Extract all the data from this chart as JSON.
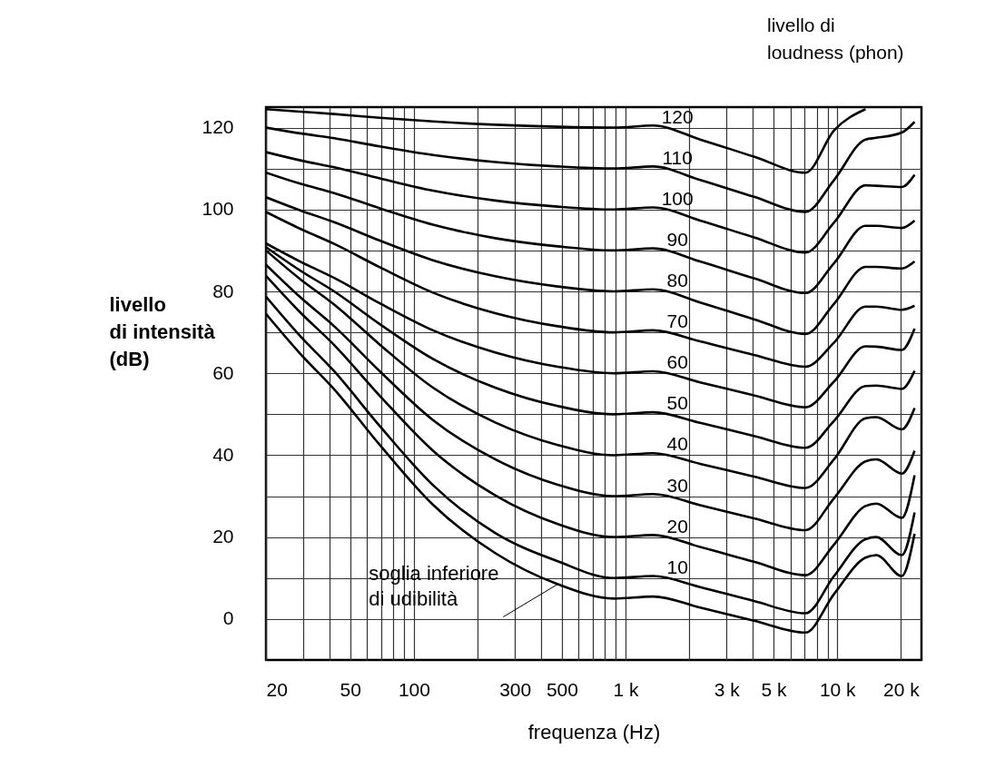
{
  "chart_data": {
    "type": "line",
    "xlabel": "frequenza (Hz)",
    "ylabel": "livello\ndi intensità\n(dB)",
    "legend_title": "livello di\nloudness (phon)",
    "x": [
      20,
      29,
      42,
      69,
      123,
      242,
      478,
      880,
      1350,
      2250,
      4040,
      7080,
      9660,
      13600,
      15300,
      20200,
      23200
    ],
    "series": [
      {
        "name": "120",
        "color": "#000000",
        "values": [
          124.5,
          123.9,
          123.3,
          122.4,
          121.5,
          120.7,
          120.2,
          120,
          120.5,
          117.1,
          112.9,
          109,
          119.3,
          124.5,
          null,
          null,
          null
        ]
      },
      {
        "name": "110",
        "color": "#000000",
        "values": [
          120,
          118.6,
          117.4,
          115.4,
          113.3,
          111.6,
          110.5,
          110,
          110.5,
          107.2,
          103.1,
          99.4,
          107.2,
          117.1,
          117.5,
          118.8,
          121.4
        ]
      },
      {
        "name": "100",
        "color": "#000000",
        "values": [
          114,
          112,
          110.3,
          107.6,
          104.6,
          102.2,
          100.7,
          100,
          100.5,
          97.3,
          93.2,
          89.5,
          96.8,
          105.9,
          105.8,
          105.5,
          108.5
        ]
      },
      {
        "name": "90",
        "color": "#000000",
        "values": [
          109,
          106.3,
          104,
          100.3,
          96.3,
          93,
          91,
          90,
          90.5,
          87.3,
          83.2,
          79.6,
          86.9,
          96,
          96,
          95.5,
          97.3
        ]
      },
      {
        "name": "80",
        "color": "#000000",
        "values": [
          103,
          99.8,
          96.9,
          92.4,
          87.6,
          83.7,
          81.2,
          80,
          80.5,
          77.3,
          73.2,
          69.6,
          77,
          86,
          86,
          85.6,
          87.3
        ]
      },
      {
        "name": "70",
        "color": "#000000",
        "values": [
          99.4,
          95.3,
          91.6,
          85.9,
          79.7,
          74.7,
          71.5,
          70,
          70.5,
          67.8,
          64.5,
          61.6,
          67.5,
          76.3,
          76.3,
          75.5,
          76.5
        ]
      },
      {
        "name": "60",
        "color": "#000000",
        "values": [
          91.7,
          87.3,
          83.3,
          77.1,
          70.5,
          65.1,
          61.6,
          60,
          60.5,
          57.8,
          54.6,
          51.7,
          58,
          66.6,
          66.5,
          65.7,
          70.9
        ]
      },
      {
        "name": "50",
        "color": "#000000",
        "values": [
          90.8,
          85.1,
          80,
          72,
          63.5,
          56.5,
          52,
          50,
          50.5,
          47.9,
          44.7,
          41.8,
          48.4,
          56.9,
          57,
          56.2,
          60.6
        ]
      },
      {
        "name": "40",
        "color": "#000000",
        "values": [
          90,
          83,
          76.8,
          67,
          56.5,
          48,
          42.5,
          40,
          40.5,
          37.9,
          34.8,
          32,
          39,
          49,
          49.3,
          46.3,
          51.5
        ]
      },
      {
        "name": "30",
        "color": "#000000",
        "values": [
          86.5,
          78.6,
          71.5,
          60.5,
          48.6,
          39,
          32.8,
          30,
          30.5,
          27.8,
          24.6,
          21.7,
          29.5,
          38.5,
          39,
          35.5,
          41.1
        ]
      },
      {
        "name": "20",
        "color": "#000000",
        "values": [
          83.8,
          74.9,
          66.9,
          54.5,
          41.1,
          30.2,
          23.2,
          20,
          20.5,
          17.6,
          14,
          10.7,
          18.2,
          27.6,
          28.2,
          24.7,
          35.1
        ]
      },
      {
        "name": "10",
        "color": "#000000",
        "values": [
          78.7,
          69.1,
          60.5,
          47.1,
          32.7,
          21,
          14.1,
          10,
          10.5,
          7.8,
          4.4,
          1.4,
          10.5,
          19.5,
          20,
          15.6,
          26
        ]
      },
      {
        "color": "#000000",
        "values": [
          74.5,
          64.8,
          56.1,
          42.5,
          27.9,
          16.1,
          8.5,
          5,
          5.5,
          2.8,
          -0.4,
          -3.3,
          6.1,
          15,
          15.6,
          10.5,
          20.8
        ]
      }
    ],
    "annotations": [
      {
        "text": "soglia inferiore\ndi udibilità",
        "x": 478,
        "y": 8.5
      }
    ],
    "log": "x",
    "xlim": [
      20,
      25000
    ],
    "xticks": [
      20,
      {
        "value": 30,
        "label": null
      },
      {
        "value": 40,
        "label": null
      },
      50,
      {
        "value": 60,
        "label": null
      },
      {
        "value": 70,
        "label": null
      },
      {
        "value": 80,
        "label": null
      },
      {
        "value": 90,
        "label": null
      },
      100,
      {
        "value": 200,
        "label": null
      },
      300,
      {
        "value": 400,
        "label": null
      },
      500,
      {
        "value": 600,
        "label": null
      },
      {
        "value": 700,
        "label": null
      },
      {
        "value": 800,
        "label": null
      },
      {
        "value": 900,
        "label": null
      },
      {
        "value": 1000,
        "label": "1 k"
      },
      {
        "value": 2000,
        "label": null
      },
      {
        "value": 3000,
        "label": "3 k"
      },
      {
        "value": 4000,
        "label": null
      },
      {
        "value": 5000,
        "label": "5 k"
      },
      {
        "value": 6000,
        "label": null
      },
      {
        "value": 7000,
        "label": null
      },
      {
        "value": 8000,
        "label": null
      },
      {
        "value": 9000,
        "label": null
      },
      {
        "value": 10000,
        "label": "10 k"
      },
      {
        "value": 20000,
        "label": "20 k"
      }
    ],
    "ylim": [
      -10,
      125
    ],
    "yticks": [
      0,
      {
        "value": 10,
        "label": null
      },
      20,
      {
        "value": 30,
        "label": null
      },
      40,
      {
        "value": 50,
        "label": null
      },
      60,
      {
        "value": 70,
        "label": null
      },
      80,
      {
        "value": 90,
        "label": null
      },
      100,
      {
        "value": 110,
        "label": null
      },
      120
    ],
    "grid": true,
    "marker": "none",
    "line_style": "solid"
  }
}
